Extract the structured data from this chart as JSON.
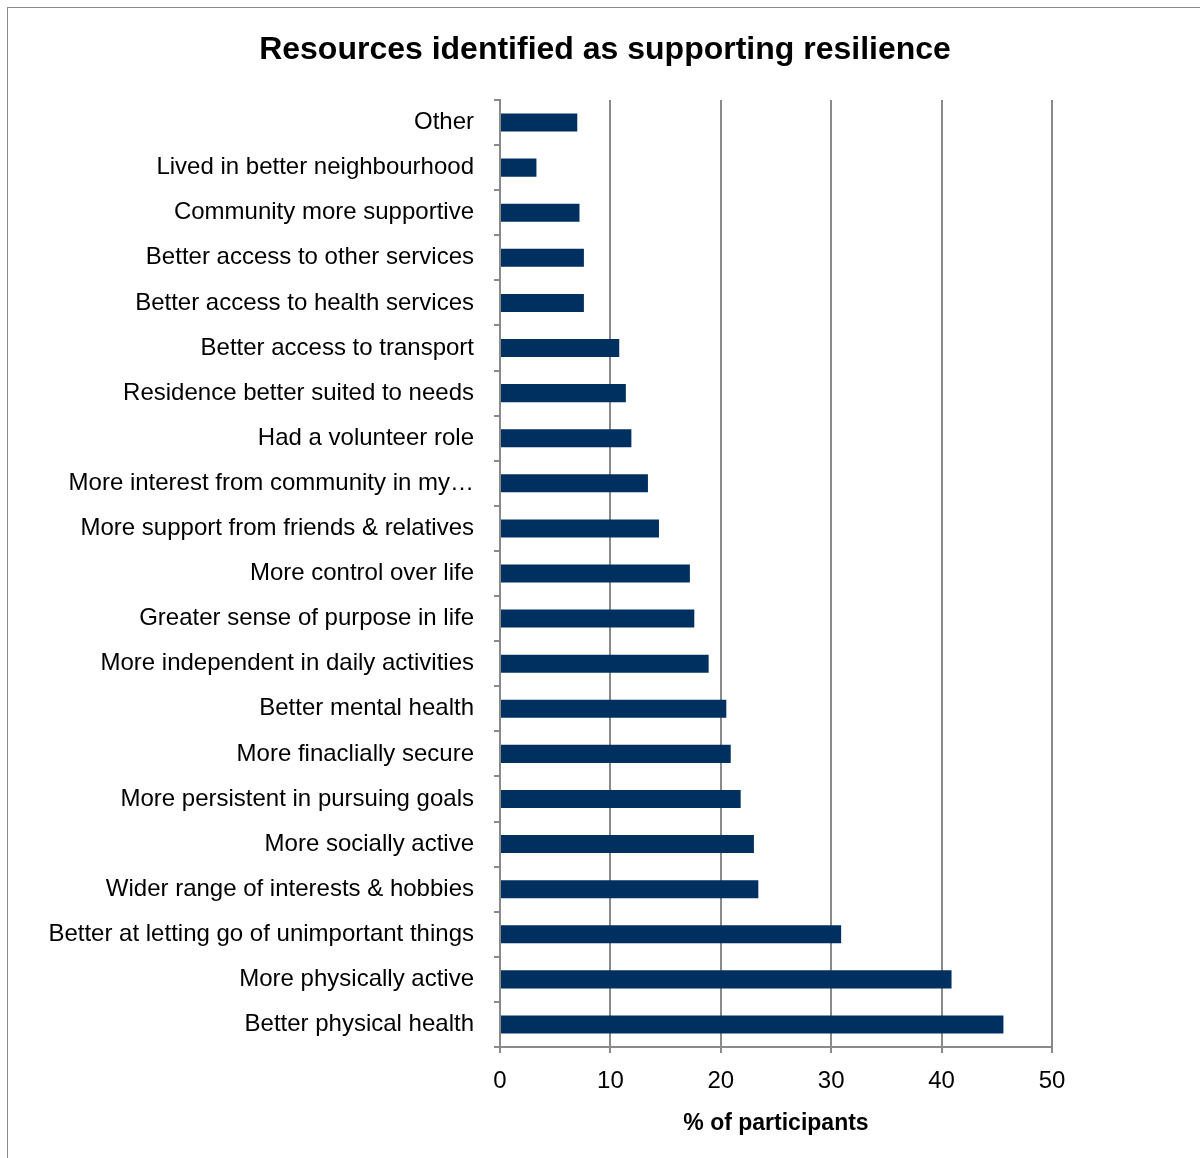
{
  "chart_data": {
    "type": "bar",
    "orientation": "horizontal",
    "title": "Resources identified as supporting resilience",
    "xlabel": "% of participants",
    "categories": [
      "Other",
      "Lived in better neighbourhood",
      "Community more supportive",
      "Better access to other services",
      "Better access to health services",
      "Better access to transport",
      "Residence better suited to needs",
      "Had a volunteer role",
      "More interest from community in my…",
      "More support from friends & relatives",
      "More control over life",
      "Greater sense of purpose in life",
      "More independent in daily activities",
      "Better mental health",
      "More finaclially secure",
      "More persistent in pursuing goals",
      "More socially active",
      "Wider range of interests & hobbies",
      "Better at letting go of unimportant things",
      "More physically active",
      "Better physical health"
    ],
    "values": [
      7.0,
      3.3,
      7.2,
      7.6,
      7.6,
      10.8,
      11.4,
      11.9,
      13.4,
      14.4,
      17.2,
      17.6,
      18.9,
      20.5,
      20.9,
      21.8,
      23.0,
      23.4,
      30.9,
      40.9,
      45.6
    ],
    "color": "#003060",
    "xlim": [
      0,
      50
    ],
    "xticks": [
      0,
      10,
      20,
      30,
      40,
      50
    ],
    "grid": "x"
  }
}
